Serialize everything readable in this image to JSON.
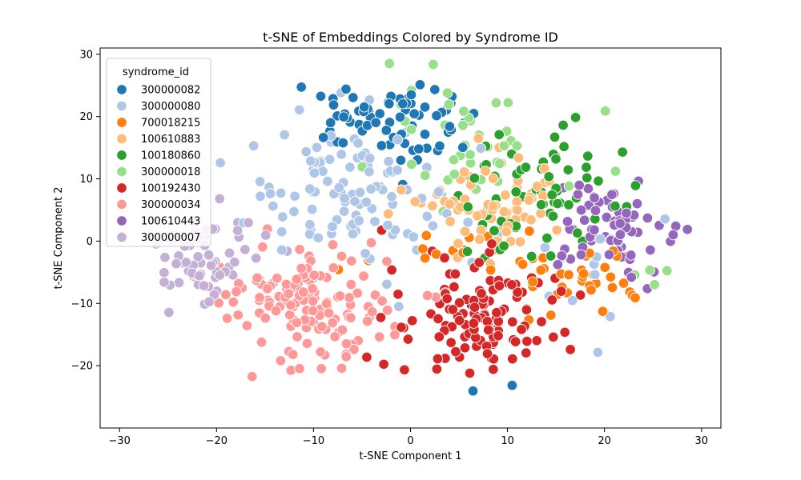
{
  "chart_data": {
    "type": "scatter",
    "title": "t-SNE of Embeddings Colored by Syndrome ID",
    "xlabel": "t-SNE Component 1",
    "ylabel": "t-SNE Component 2",
    "xlim": [
      -32,
      32
    ],
    "ylim": [
      -30,
      31
    ],
    "xticks": [
      -30,
      -20,
      -10,
      0,
      10,
      20,
      30
    ],
    "yticks": [
      -20,
      -10,
      0,
      10,
      20,
      30
    ],
    "grid": false,
    "legend": {
      "title": "syndrome_id",
      "placement": "top-left"
    },
    "series": [
      {
        "name": "300000082",
        "color": "#1f77b4",
        "clusters": [
          {
            "cx": -3,
            "cy": 19,
            "sx": 5,
            "sy": 4,
            "n": 75
          },
          {
            "cx": 8,
            "cy": -24,
            "sx": 3,
            "sy": 1,
            "n": 2
          }
        ]
      },
      {
        "name": "300000080",
        "color": "#aec7e8",
        "clusters": [
          {
            "cx": -6,
            "cy": 8,
            "sx": 6,
            "sy": 6,
            "n": 110
          },
          {
            "cx": 18,
            "cy": -6,
            "sx": 5,
            "sy": 6,
            "n": 12
          }
        ]
      },
      {
        "name": "700018215",
        "color": "#ff7f0e",
        "clusters": [
          {
            "cx": 18,
            "cy": -6,
            "sx": 5,
            "sy": 3.5,
            "n": 40
          },
          {
            "cx": 5,
            "cy": -1,
            "sx": 5,
            "sy": 3,
            "n": 14
          }
        ]
      },
      {
        "name": "100610883",
        "color": "#ffbb78",
        "clusters": [
          {
            "cx": 8,
            "cy": 6,
            "sx": 4,
            "sy": 4.5,
            "n": 75
          }
        ]
      },
      {
        "name": "100180860",
        "color": "#2ca02c",
        "clusters": [
          {
            "cx": 14,
            "cy": 7,
            "sx": 5,
            "sy": 6,
            "n": 65
          }
        ]
      },
      {
        "name": "300000018",
        "color": "#98df8a",
        "clusters": [
          {
            "cx": 6,
            "cy": 14,
            "sx": 6,
            "sy": 6,
            "n": 40
          },
          {
            "cx": 27,
            "cy": -7,
            "sx": 1.5,
            "sy": 1.5,
            "n": 4
          }
        ]
      },
      {
        "name": "100192430",
        "color": "#d62728",
        "clusters": [
          {
            "cx": 7,
            "cy": -12,
            "sx": 5,
            "sy": 5,
            "n": 120
          }
        ]
      },
      {
        "name": "300000034",
        "color": "#ff9896",
        "clusters": [
          {
            "cx": -10,
            "cy": -10,
            "sx": 6,
            "sy": 6,
            "n": 140
          }
        ]
      },
      {
        "name": "100610443",
        "color": "#9467bd",
        "clusters": [
          {
            "cx": 21,
            "cy": 3,
            "sx": 3.5,
            "sy": 5,
            "n": 75
          }
        ]
      },
      {
        "name": "300000007",
        "color": "#c5b0d5",
        "clusters": [
          {
            "cx": -21,
            "cy": -3,
            "sx": 4,
            "sy": 4.5,
            "n": 70
          }
        ]
      }
    ]
  }
}
